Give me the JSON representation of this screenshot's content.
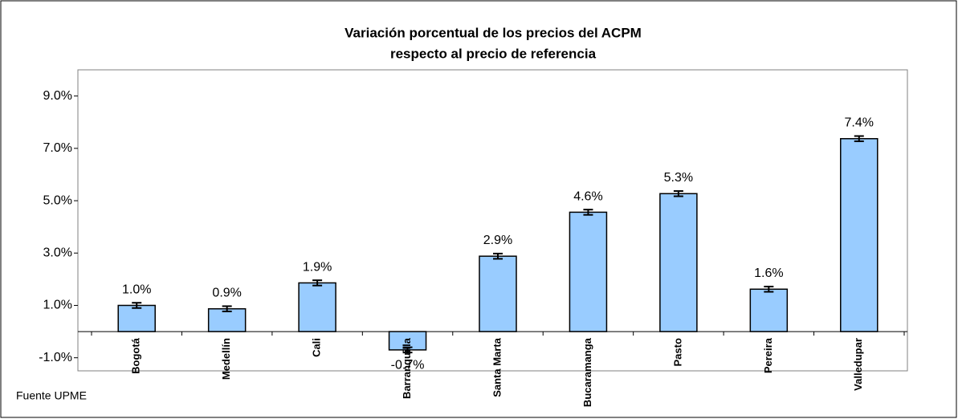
{
  "chart_data": {
    "type": "bar",
    "title": [
      "Variación porcentual de los precios del ACPM",
      "respecto al precio de referencia"
    ],
    "source": "Fuente UPME",
    "categories": [
      "Bogotá",
      "Medellín",
      "Cali",
      "Barranquilla",
      "Santa Marta",
      "Bucaramanga",
      "Pasto",
      "Pereira",
      "Valledupar"
    ],
    "values": [
      1.0,
      0.87,
      1.86,
      -0.7,
      2.88,
      4.56,
      5.27,
      1.62,
      7.37
    ],
    "value_labels": [
      "1.0%",
      "0.9%",
      "1.9%",
      "-0.7%",
      "2.9%",
      "4.6%",
      "5.3%",
      "1.6%",
      "7.4%"
    ],
    "errors": [
      0.1,
      0.1,
      0.1,
      0.1,
      0.1,
      0.1,
      0.1,
      0.1,
      0.1
    ],
    "color": "#99ccff",
    "ylim": [
      -1.5,
      10
    ],
    "yticks": [
      {
        "value": -1,
        "label": "-1.0%"
      },
      {
        "value": 1,
        "label": "1.0%"
      },
      {
        "value": 3,
        "label": "3.0%"
      },
      {
        "value": 5,
        "label": "5.0%"
      },
      {
        "value": 7,
        "label": "7.0%"
      },
      {
        "value": 9,
        "label": "9.0%"
      }
    ],
    "grid": false
  }
}
